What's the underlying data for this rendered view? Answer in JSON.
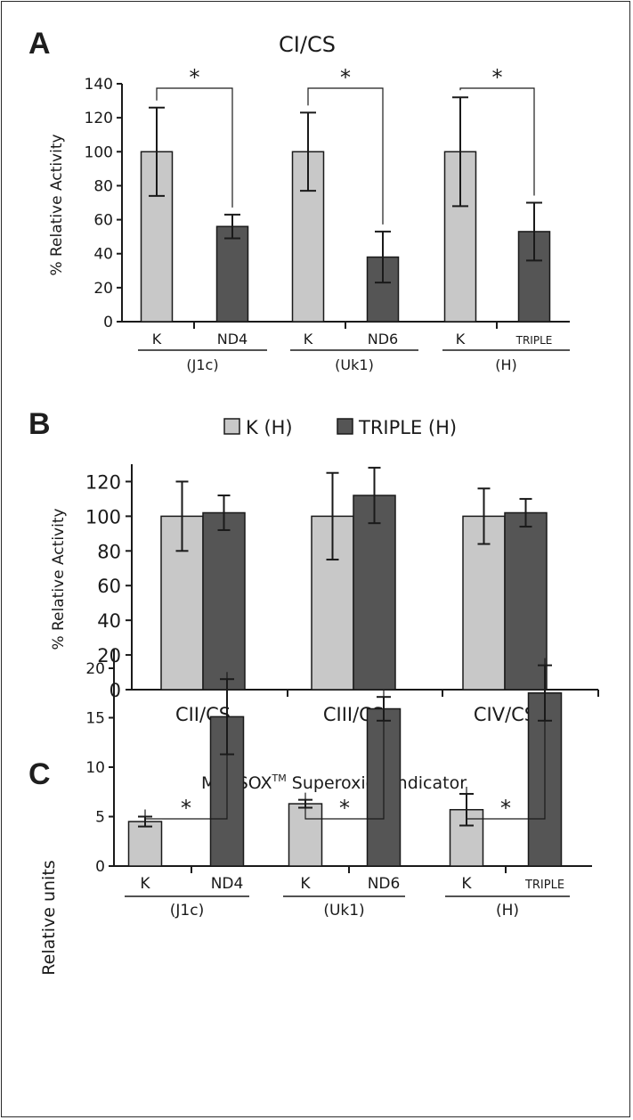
{
  "colors": {
    "light_bar": "#c8c8c8",
    "dark_bar": "#555555",
    "axis": "#1a1a1a"
  },
  "chart_data": [
    {
      "panel": "A",
      "type": "bar",
      "title": "CI/CS",
      "ylabel": "% Relative Activity",
      "ylim": [
        0,
        140
      ],
      "yticks": [
        "0",
        "20",
        "40",
        "60",
        "80",
        "100",
        "120",
        "140"
      ],
      "groups": [
        {
          "label": "(J1c)",
          "significance": "*",
          "bars": [
            {
              "label": "K",
              "value": 100,
              "err": 26
            },
            {
              "label": "ND4",
              "value": 56,
              "err": 7
            }
          ]
        },
        {
          "label": "(Uk1)",
          "significance": "*",
          "bars": [
            {
              "label": "K",
              "value": 100,
              "err": 23
            },
            {
              "label": "ND6",
              "value": 38,
              "err": 15
            }
          ]
        },
        {
          "label": "(H)",
          "significance": "*",
          "bars": [
            {
              "label": "K",
              "value": 100,
              "err": 32
            },
            {
              "label": "TRIPLE",
              "value": 53,
              "err": 17
            }
          ]
        }
      ]
    },
    {
      "panel": "B",
      "type": "bar",
      "title": "",
      "ylabel": "% Relative Activity",
      "ylim": [
        0,
        130
      ],
      "yticks": [
        "0",
        "20",
        "40",
        "60",
        "80",
        "100",
        "120"
      ],
      "legend": [
        "K (H)",
        "TRIPLE (H)"
      ],
      "categories": [
        "CII/CS",
        "CIII/CS",
        "CIV/CS"
      ],
      "series": [
        {
          "name": "K (H)",
          "values": [
            100,
            100,
            100
          ],
          "errors": [
            20,
            25,
            16
          ]
        },
        {
          "name": "TRIPLE (H)",
          "values": [
            102,
            112,
            102
          ],
          "errors": [
            10,
            16,
            8
          ]
        }
      ]
    },
    {
      "panel": "C",
      "type": "bar",
      "title_main": "MitoSOX",
      "title_sup": "TM",
      "title_rest": " Superoxide indicator",
      "ylabel": "Relative units",
      "ylim": [
        0,
        22
      ],
      "yticks": [
        "0",
        "5",
        "10",
        "15",
        "20"
      ],
      "groups": [
        {
          "label": "(J1c)",
          "significance": "*",
          "bars": [
            {
              "label": "K",
              "value": 4.5,
              "err": 0.5
            },
            {
              "label": "ND4",
              "value": 15.1,
              "err": 3.8
            }
          ]
        },
        {
          "label": "(Uk1)",
          "significance": "*",
          "bars": [
            {
              "label": "K",
              "value": 6.3,
              "err": 0.4
            },
            {
              "label": "ND6",
              "value": 15.9,
              "err": 1.2
            }
          ]
        },
        {
          "label": "(H)",
          "significance": "*",
          "bars": [
            {
              "label": "K",
              "value": 5.7,
              "err": 1.6
            },
            {
              "label": "TRIPLE",
              "value": 17.5,
              "err": 2.8
            }
          ]
        }
      ]
    }
  ]
}
